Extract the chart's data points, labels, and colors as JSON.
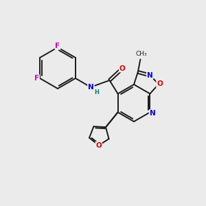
{
  "bg_color": "#ebebeb",
  "bond_color": "#1a1a1a",
  "atom_colors": {
    "F": "#cc00cc",
    "N": "#0000dd",
    "O": "#dd0000",
    "C": "#1a1a1a",
    "H": "#008080"
  },
  "font_size": 7.5
}
